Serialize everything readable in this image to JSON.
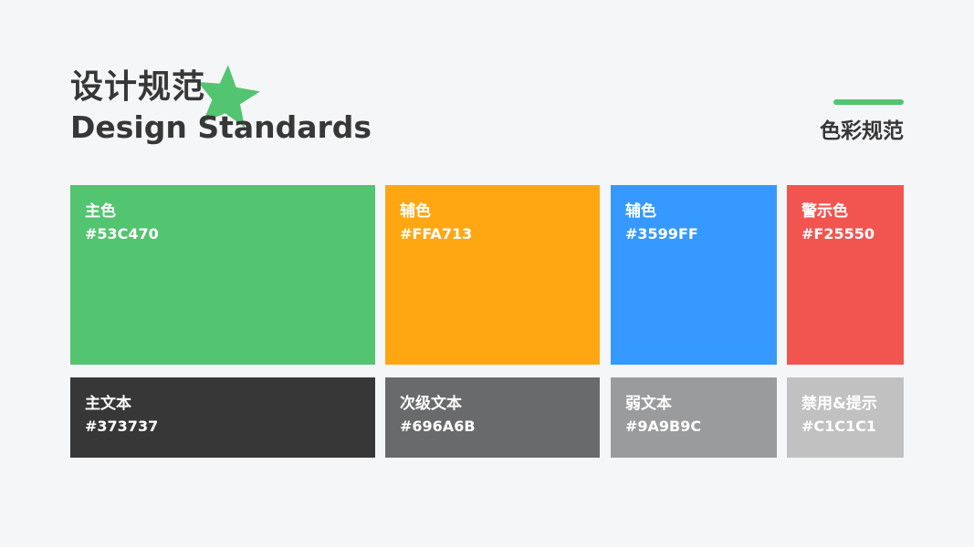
{
  "header": {
    "title_cn": "设计规范",
    "title_en": "Design Standards",
    "section_label": "色彩规范",
    "accent_color": "#53C470",
    "decoration": "star-icon"
  },
  "swatches": [
    {
      "name": "主色",
      "hex": "#53C470"
    },
    {
      "name": "辅色",
      "hex": "#FFA713"
    },
    {
      "name": "辅色",
      "hex": "#3599FF"
    },
    {
      "name": "警示色",
      "hex": "#F25550"
    },
    {
      "name": "主文本",
      "hex": "#373737"
    },
    {
      "name": "次级文本",
      "hex": "#696A6B"
    },
    {
      "name": "弱文本",
      "hex": "#9A9B9C"
    },
    {
      "name": "禁用&提示",
      "hex": "#C1C1C1"
    }
  ]
}
